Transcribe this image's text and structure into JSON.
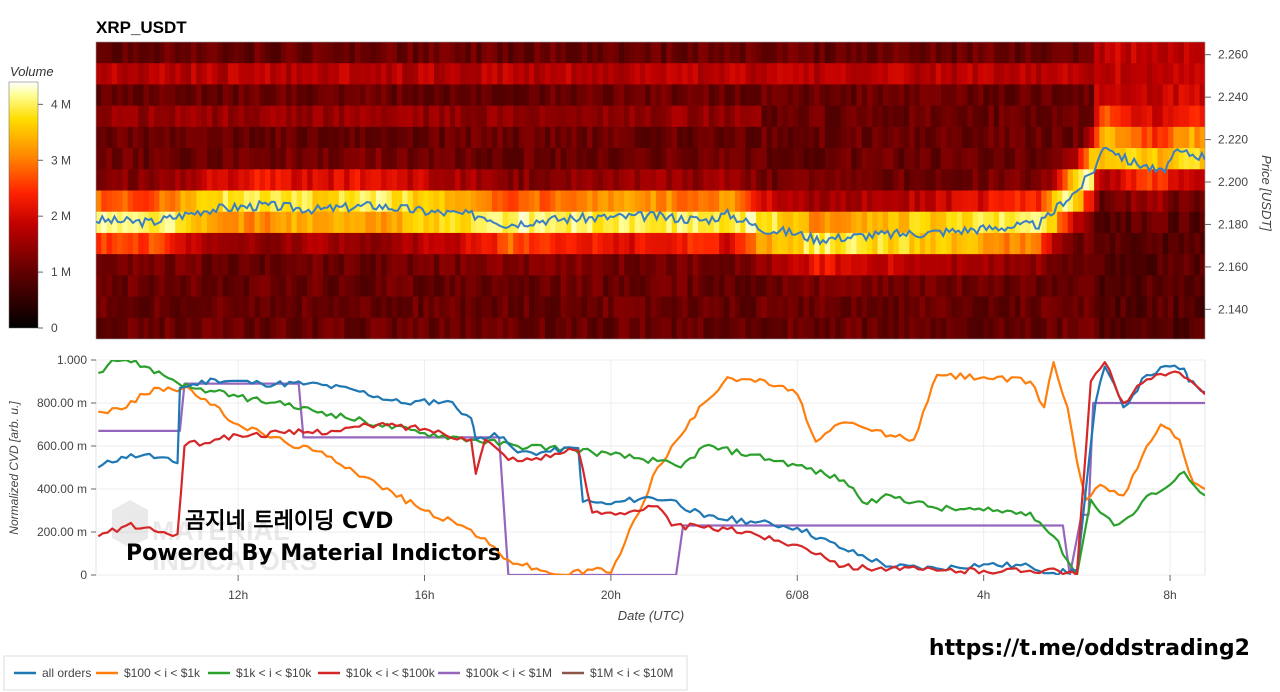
{
  "heatmap_title": "XRP_USDT",
  "colorbar": {
    "title": "Volume",
    "ticks": [
      "4 M",
      "3 M",
      "2 M",
      "1 M",
      "0"
    ]
  },
  "overlay": {
    "line1": "곰지네 트레이딩 CVD",
    "line2": "Powered By Material Indictors",
    "watermark_line1": "MATERIAL",
    "watermark_line2": "INDICATORS"
  },
  "url": "https://t.me/oddstrading2",
  "legend": [
    "all orders",
    "$100 < i < $1k",
    "$1k < i < $10k",
    "$10k < i < $100k",
    "$100k < i < $1M",
    "$1M < i < $10M"
  ],
  "colors": {
    "all": "#1f77b4",
    "c100": "#ff7f0e",
    "c1k": "#2ca02c",
    "c10k": "#d62728",
    "c100k": "#9467bd",
    "c1m": "#8c564b",
    "price_line": "#3a7fc2"
  },
  "chart_data": [
    {
      "type": "heatmap",
      "title": "XRP_USDT",
      "ylabel": "Price [USDT]",
      "ylim": [
        2.126,
        2.266
      ],
      "y_ticks": [
        "2.260",
        "2.240",
        "2.220",
        "2.200",
        "2.180",
        "2.160",
        "2.140"
      ],
      "colorbar_range": [
        0,
        4400000
      ],
      "price_path_anchors": [
        [
          0,
          2.182
        ],
        [
          0.05,
          2.181
        ],
        [
          0.1,
          2.187
        ],
        [
          0.15,
          2.189
        ],
        [
          0.2,
          2.187
        ],
        [
          0.25,
          2.189
        ],
        [
          0.3,
          2.186
        ],
        [
          0.35,
          2.184
        ],
        [
          0.37,
          2.18
        ],
        [
          0.4,
          2.182
        ],
        [
          0.44,
          2.183
        ],
        [
          0.5,
          2.184
        ],
        [
          0.55,
          2.182
        ],
        [
          0.57,
          2.185
        ],
        [
          0.6,
          2.178
        ],
        [
          0.63,
          2.176
        ],
        [
          0.65,
          2.173
        ],
        [
          0.7,
          2.175
        ],
        [
          0.75,
          2.176
        ],
        [
          0.8,
          2.178
        ],
        [
          0.85,
          2.18
        ],
        [
          0.86,
          2.184
        ],
        [
          0.87,
          2.19
        ],
        [
          0.885,
          2.196
        ],
        [
          0.9,
          2.206
        ],
        [
          0.91,
          2.218
        ],
        [
          0.93,
          2.21
        ],
        [
          0.945,
          2.208
        ],
        [
          0.96,
          2.204
        ],
        [
          0.975,
          2.214
        ],
        [
          0.99,
          2.213
        ],
        [
          1.0,
          2.212
        ]
      ]
    },
    {
      "type": "line",
      "xlabel": "Date (UTC)",
      "ylabel": "Normalized CVD [arb. u.]",
      "ylim": [
        0,
        1
      ],
      "y_ticks": [
        "1.000",
        "800.00 m",
        "600.00 m",
        "400.00 m",
        "200.00 m",
        "0"
      ],
      "x_ticks": [
        "12h",
        "16h",
        "20h",
        "6/08",
        "4h",
        "8h"
      ],
      "x_tick_positions_hours_from_start": [
        3,
        7,
        11,
        15,
        19,
        23
      ],
      "x_range_hours": [
        -0.05,
        23.75
      ],
      "series": [
        {
          "name": "all orders",
          "color": "#1f77b4",
          "points": [
            [
              0,
              0.5
            ],
            [
              0.5,
              0.55
            ],
            [
              1.0,
              0.56
            ],
            [
              1.7,
              0.52
            ],
            [
              1.75,
              0.87
            ],
            [
              2.5,
              0.91
            ],
            [
              3.5,
              0.89
            ],
            [
              4.5,
              0.89
            ],
            [
              5.5,
              0.86
            ],
            [
              6.5,
              0.8
            ],
            [
              7.5,
              0.81
            ],
            [
              8.0,
              0.73
            ],
            [
              8.1,
              0.63
            ],
            [
              8.5,
              0.66
            ],
            [
              8.8,
              0.61
            ],
            [
              9.0,
              0.57
            ],
            [
              9.5,
              0.57
            ],
            [
              10.3,
              0.59
            ],
            [
              10.4,
              0.34
            ],
            [
              11.0,
              0.33
            ],
            [
              11.7,
              0.36
            ],
            [
              12.3,
              0.35
            ],
            [
              13.0,
              0.27
            ],
            [
              14.0,
              0.25
            ],
            [
              15.0,
              0.22
            ],
            [
              16.0,
              0.12
            ],
            [
              17.0,
              0.04
            ],
            [
              18.0,
              0.03
            ],
            [
              19.0,
              0.05
            ],
            [
              20.0,
              0.04
            ],
            [
              20.5,
              0.01
            ],
            [
              21.0,
              0.02
            ],
            [
              21.4,
              0.8
            ],
            [
              21.6,
              0.97
            ],
            [
              22.0,
              0.78
            ],
            [
              22.5,
              0.93
            ],
            [
              23.0,
              0.97
            ],
            [
              23.3,
              0.96
            ],
            [
              23.4,
              0.9
            ],
            [
              23.75,
              0.85
            ]
          ]
        },
        {
          "name": "$100 < i < $1k",
          "color": "#ff7f0e",
          "points": [
            [
              0,
              0.76
            ],
            [
              0.5,
              0.77
            ],
            [
              1.2,
              0.87
            ],
            [
              2.0,
              0.86
            ],
            [
              3.0,
              0.7
            ],
            [
              4.0,
              0.62
            ],
            [
              5.0,
              0.55
            ],
            [
              6.0,
              0.42
            ],
            [
              7.0,
              0.3
            ],
            [
              8.0,
              0.21
            ],
            [
              8.8,
              0.07
            ],
            [
              9.5,
              0.02
            ],
            [
              10.0,
              0.0
            ],
            [
              10.8,
              0.03
            ],
            [
              11.0,
              0.01
            ],
            [
              11.3,
              0.15
            ],
            [
              12.0,
              0.5
            ],
            [
              13.0,
              0.8
            ],
            [
              13.5,
              0.92
            ],
            [
              14.0,
              0.91
            ],
            [
              14.6,
              0.88
            ],
            [
              15.0,
              0.84
            ],
            [
              15.4,
              0.62
            ],
            [
              16.0,
              0.71
            ],
            [
              16.5,
              0.68
            ],
            [
              17.0,
              0.65
            ],
            [
              17.5,
              0.63
            ],
            [
              18.0,
              0.93
            ],
            [
              19.0,
              0.92
            ],
            [
              20.0,
              0.9
            ],
            [
              20.3,
              0.78
            ],
            [
              20.5,
              0.99
            ],
            [
              20.8,
              0.78
            ],
            [
              21.0,
              0.53
            ],
            [
              21.2,
              0.35
            ],
            [
              21.5,
              0.42
            ],
            [
              22.0,
              0.37
            ],
            [
              22.5,
              0.6
            ],
            [
              22.8,
              0.7
            ],
            [
              23.2,
              0.63
            ],
            [
              23.5,
              0.43
            ],
            [
              23.75,
              0.4
            ]
          ]
        },
        {
          "name": "$1k < i < $10k",
          "color": "#2ca02c",
          "points": [
            [
              0,
              0.94
            ],
            [
              0.3,
              1.0
            ],
            [
              0.6,
              1.0
            ],
            [
              1.0,
              0.97
            ],
            [
              2.0,
              0.87
            ],
            [
              3.0,
              0.83
            ],
            [
              4.0,
              0.79
            ],
            [
              5.0,
              0.75
            ],
            [
              6.0,
              0.7
            ],
            [
              7.0,
              0.66
            ],
            [
              8.0,
              0.63
            ],
            [
              9.0,
              0.6
            ],
            [
              10.0,
              0.59
            ],
            [
              11.0,
              0.56
            ],
            [
              12.0,
              0.53
            ],
            [
              12.5,
              0.5
            ],
            [
              13.0,
              0.6
            ],
            [
              14.0,
              0.56
            ],
            [
              15.0,
              0.51
            ],
            [
              16.0,
              0.44
            ],
            [
              16.5,
              0.33
            ],
            [
              17.0,
              0.37
            ],
            [
              18.0,
              0.31
            ],
            [
              19.0,
              0.3
            ],
            [
              20.0,
              0.29
            ],
            [
              20.5,
              0.18
            ],
            [
              21.0,
              0.0
            ],
            [
              21.3,
              0.35
            ],
            [
              21.8,
              0.23
            ],
            [
              22.2,
              0.28
            ],
            [
              22.6,
              0.38
            ],
            [
              23.0,
              0.42
            ],
            [
              23.3,
              0.48
            ],
            [
              23.75,
              0.37
            ]
          ]
        },
        {
          "name": "$10k < i < $100k",
          "color": "#d62728",
          "points": [
            [
              0,
              0.18
            ],
            [
              0.6,
              0.23
            ],
            [
              1.0,
              0.22
            ],
            [
              1.5,
              0.19
            ],
            [
              1.7,
              0.19
            ],
            [
              1.85,
              0.6
            ],
            [
              2.5,
              0.63
            ],
            [
              3.0,
              0.65
            ],
            [
              4.0,
              0.66
            ],
            [
              5.0,
              0.67
            ],
            [
              6.0,
              0.7
            ],
            [
              7.0,
              0.68
            ],
            [
              7.8,
              0.64
            ],
            [
              8.0,
              0.63
            ],
            [
              8.1,
              0.47
            ],
            [
              8.3,
              0.63
            ],
            [
              8.7,
              0.56
            ],
            [
              9.0,
              0.53
            ],
            [
              10.0,
              0.57
            ],
            [
              10.3,
              0.58
            ],
            [
              10.6,
              0.29
            ],
            [
              11.0,
              0.29
            ],
            [
              11.5,
              0.3
            ],
            [
              12.0,
              0.32
            ],
            [
              12.3,
              0.23
            ],
            [
              13.0,
              0.22
            ],
            [
              14.0,
              0.2
            ],
            [
              14.5,
              0.16
            ],
            [
              15.0,
              0.14
            ],
            [
              15.5,
              0.1
            ],
            [
              16.0,
              0.04
            ],
            [
              17.0,
              0.03
            ],
            [
              18.0,
              0.02
            ],
            [
              19.0,
              0.02
            ],
            [
              20.0,
              0.02
            ],
            [
              20.5,
              0.03
            ],
            [
              21.0,
              0.0
            ],
            [
              21.3,
              0.9
            ],
            [
              21.6,
              0.99
            ],
            [
              22.0,
              0.8
            ],
            [
              22.5,
              0.91
            ],
            [
              23.0,
              0.94
            ],
            [
              23.3,
              0.92
            ],
            [
              23.75,
              0.84
            ]
          ]
        },
        {
          "name": "$100k < i < $1M",
          "color": "#9467bd",
          "points": [
            [
              0,
              0.67
            ],
            [
              1.75,
              0.67
            ],
            [
              1.85,
              0.89
            ],
            [
              4.3,
              0.89
            ],
            [
              4.4,
              0.64
            ],
            [
              8.6,
              0.64
            ],
            [
              8.8,
              0.0
            ],
            [
              12.4,
              0.0
            ],
            [
              12.55,
              0.23
            ],
            [
              20.7,
              0.23
            ],
            [
              20.85,
              0.0
            ],
            [
              21.1,
              0.28
            ],
            [
              21.25,
              0.28
            ],
            [
              21.35,
              0.8
            ],
            [
              23.75,
              0.8
            ]
          ]
        },
        {
          "name": "$1M < i < $10M",
          "color": "#8c564b",
          "points": []
        }
      ]
    }
  ]
}
